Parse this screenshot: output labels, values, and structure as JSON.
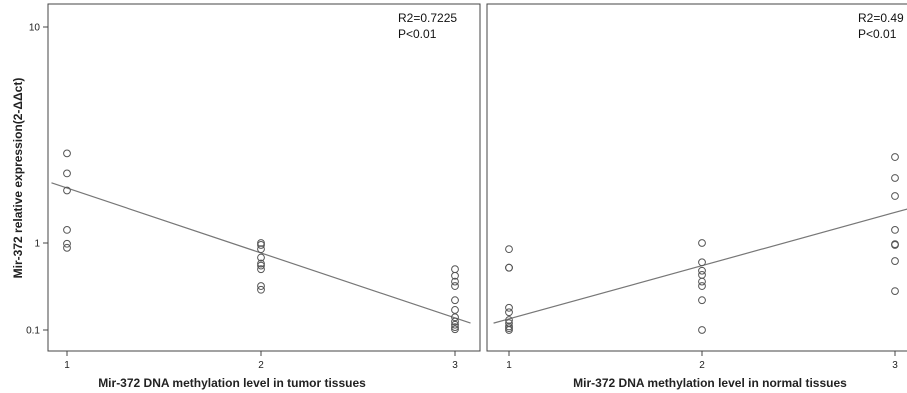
{
  "ylabel": "Mir-372 relative expression(2-ΔΔct)",
  "chart_data": [
    {
      "type": "scatter",
      "xlabel": "Mir-372 DNA methylation level in tumor tissues",
      "x_ticks": [
        "1",
        "2",
        "3"
      ],
      "y_ticks": [
        "10",
        "1",
        "0.1"
      ],
      "y_scale": "log",
      "xlim": [
        0.92,
        3.08
      ],
      "ylim": [
        0.085,
        10.5
      ],
      "annotations": [
        "R2=0.7225",
        "P<0.01"
      ],
      "points": [
        {
          "x": 1,
          "y": 2.6
        },
        {
          "x": 1,
          "y": 2.1
        },
        {
          "x": 1,
          "y": 1.75
        },
        {
          "x": 1,
          "y": 1.15
        },
        {
          "x": 1,
          "y": 0.98
        },
        {
          "x": 1,
          "y": 0.88
        },
        {
          "x": 2,
          "y": 1.0
        },
        {
          "x": 2,
          "y": 0.95
        },
        {
          "x": 2,
          "y": 0.85
        },
        {
          "x": 2,
          "y": 0.68
        },
        {
          "x": 2,
          "y": 0.58
        },
        {
          "x": 2,
          "y": 0.55
        },
        {
          "x": 2,
          "y": 0.5
        },
        {
          "x": 2,
          "y": 0.32
        },
        {
          "x": 2,
          "y": 0.29
        },
        {
          "x": 3,
          "y": 0.5
        },
        {
          "x": 3,
          "y": 0.42
        },
        {
          "x": 3,
          "y": 0.36
        },
        {
          "x": 3,
          "y": 0.32
        },
        {
          "x": 3,
          "y": 0.22
        },
        {
          "x": 3,
          "y": 0.17
        },
        {
          "x": 3,
          "y": 0.14
        },
        {
          "x": 3,
          "y": 0.125
        },
        {
          "x": 3,
          "y": 0.115
        },
        {
          "x": 3,
          "y": 0.108
        },
        {
          "x": 3,
          "y": 0.102
        }
      ],
      "fit_line": {
        "x": [
          0.92,
          3.08
        ],
        "y": [
          1.9,
          0.12
        ]
      }
    },
    {
      "type": "scatter",
      "xlabel": "Mir-372 DNA methylation level in normal tissues",
      "x_ticks": [
        "1",
        "2",
        "3"
      ],
      "y_scale": "log",
      "xlim": [
        0.92,
        3.08
      ],
      "ylim": [
        0.085,
        10.5
      ],
      "annotations": [
        "R2=0.49",
        "P<0.01"
      ],
      "points": [
        {
          "x": 1,
          "y": 0.85
        },
        {
          "x": 1,
          "y": 0.52
        },
        {
          "x": 1,
          "y": 0.52
        },
        {
          "x": 1,
          "y": 0.18
        },
        {
          "x": 1,
          "y": 0.16
        },
        {
          "x": 1,
          "y": 0.13
        },
        {
          "x": 1,
          "y": 0.12
        },
        {
          "x": 1,
          "y": 0.11
        },
        {
          "x": 1,
          "y": 0.105
        },
        {
          "x": 1,
          "y": 0.1
        },
        {
          "x": 2,
          "y": 1.0
        },
        {
          "x": 2,
          "y": 0.6
        },
        {
          "x": 2,
          "y": 0.48
        },
        {
          "x": 2,
          "y": 0.43
        },
        {
          "x": 2,
          "y": 0.36
        },
        {
          "x": 2,
          "y": 0.32
        },
        {
          "x": 2,
          "y": 0.22
        },
        {
          "x": 2,
          "y": 0.1
        },
        {
          "x": 3,
          "y": 2.5
        },
        {
          "x": 3,
          "y": 2.0
        },
        {
          "x": 3,
          "y": 1.65
        },
        {
          "x": 3,
          "y": 1.15
        },
        {
          "x": 3,
          "y": 0.97
        },
        {
          "x": 3,
          "y": 0.95
        },
        {
          "x": 3,
          "y": 0.62
        },
        {
          "x": 3,
          "y": 0.28
        }
      ],
      "fit_line": {
        "x": [
          0.92,
          3.08
        ],
        "y": [
          0.12,
          1.45
        ]
      }
    }
  ]
}
